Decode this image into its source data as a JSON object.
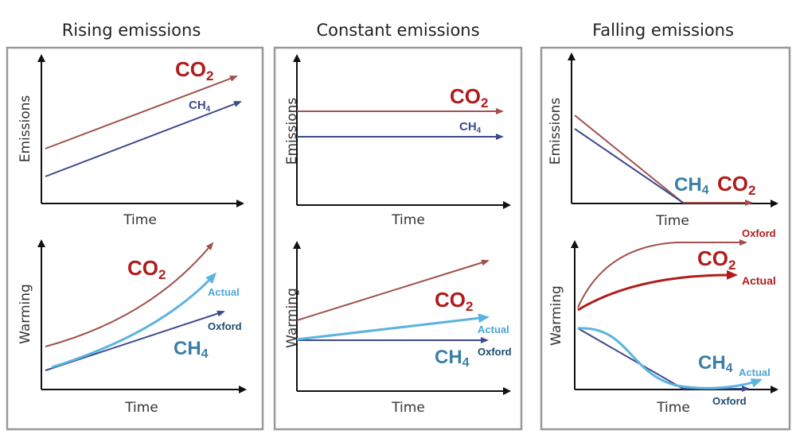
{
  "colors": {
    "co2": "#b01c1c",
    "co2_line": "#a0504c",
    "ch4": "#3a7fa8",
    "ch4_line": "#3e4a8c",
    "actual": "#5ab4e0",
    "oxford": "#1c4a6e"
  },
  "labels": {
    "emissions": "Emissions",
    "warming": "Warming",
    "time": "Time",
    "co2": "CO",
    "co2_sub": "2",
    "ch4": "CH",
    "ch4_sub": "4",
    "actual": "Actual",
    "oxford": "Oxford"
  },
  "panels": [
    {
      "title": "Rising emissions"
    },
    {
      "title": "Constant emissions"
    },
    {
      "title": "Falling emissions"
    }
  ]
}
